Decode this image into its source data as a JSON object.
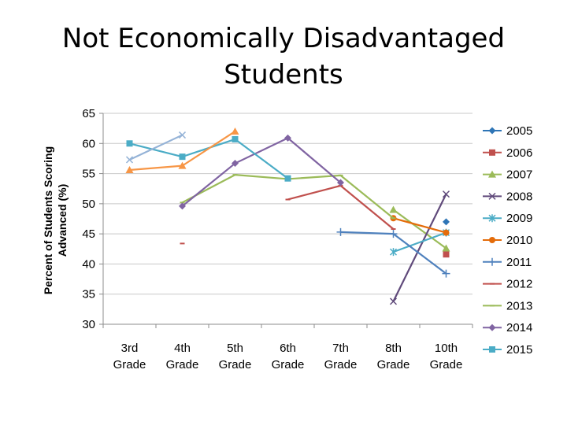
{
  "chart_data": {
    "type": "line",
    "title": "Not Economically Disadvantaged Students",
    "title_lines": [
      "Not Economically Disadvantaged",
      "Students"
    ],
    "ylabel": "Percent of Students Scoring Advanced (%)",
    "ylabel_lines": [
      "Percent of Students Scoring",
      "Advanced (%)"
    ],
    "xlabel": "",
    "categories": [
      [
        "3rd",
        "Grade"
      ],
      [
        "4th",
        "Grade"
      ],
      [
        "5th",
        "Grade"
      ],
      [
        "6th",
        "Grade"
      ],
      [
        "7th",
        "Grade"
      ],
      [
        "8th",
        "Grade"
      ],
      [
        "10th",
        "Grade"
      ]
    ],
    "yticks": [
      "30",
      "35",
      "40",
      "45",
      "50",
      "55",
      "60",
      "65"
    ],
    "ylim": [
      30,
      65
    ],
    "grid": true,
    "legend_position": "right",
    "series": [
      {
        "name": "2005",
        "color": "#2E75B6",
        "marker": "diamond",
        "values": [
          null,
          null,
          null,
          null,
          null,
          null,
          47
        ]
      },
      {
        "name": "2006",
        "color": "#C0504D",
        "marker": "square",
        "values": [
          null,
          null,
          null,
          null,
          null,
          null,
          41.6
        ]
      },
      {
        "name": "2007",
        "color": "#9BBB59",
        "marker": "triangle",
        "values": [
          null,
          null,
          null,
          null,
          null,
          49,
          42.6
        ]
      },
      {
        "name": "2008",
        "color": "#604A7B",
        "marker": "x",
        "values": [
          null,
          null,
          null,
          null,
          null,
          33.8,
          51.6
        ]
      },
      {
        "name": "2009",
        "color": "#4BACC6",
        "marker": "star",
        "values": [
          null,
          null,
          null,
          null,
          null,
          42,
          45.2
        ]
      },
      {
        "name": "2010",
        "color": "#E46C0A",
        "marker": "circle",
        "values": [
          null,
          null,
          null,
          null,
          null,
          47.6,
          45.2
        ]
      },
      {
        "name": "2011",
        "color": "#4F81BD",
        "marker": "plus",
        "values": [
          null,
          null,
          null,
          null,
          45.3,
          45,
          38.4
        ]
      },
      {
        "name": "2012",
        "color": "#C0504D",
        "marker": "dash",
        "values": [
          null,
          43.4,
          null,
          50.7,
          53,
          45.8,
          null
        ]
      },
      {
        "name": "2013",
        "color": "#9BBB59",
        "marker": "dash",
        "values": [
          null,
          50.2,
          54.8,
          54.1,
          54.7,
          47.6,
          null
        ]
      },
      {
        "name": "2014",
        "color": "#8064A2",
        "marker": "diamond",
        "values": [
          null,
          49.6,
          56.7,
          60.9,
          53.5,
          null,
          null
        ]
      },
      {
        "name": "2015",
        "color": "#4BACC6",
        "marker": "square",
        "values": [
          60,
          57.8,
          60.7,
          54.2,
          null,
          null,
          null
        ]
      },
      {
        "name": "",
        "color": "#F79646",
        "marker": "triangle",
        "values": [
          55.6,
          56.3,
          62,
          null,
          null,
          null,
          null
        ]
      },
      {
        "name": "",
        "color": "#95B3D7",
        "marker": "x",
        "values": [
          57.3,
          61.4,
          null,
          null,
          null,
          null,
          null
        ]
      }
    ]
  }
}
